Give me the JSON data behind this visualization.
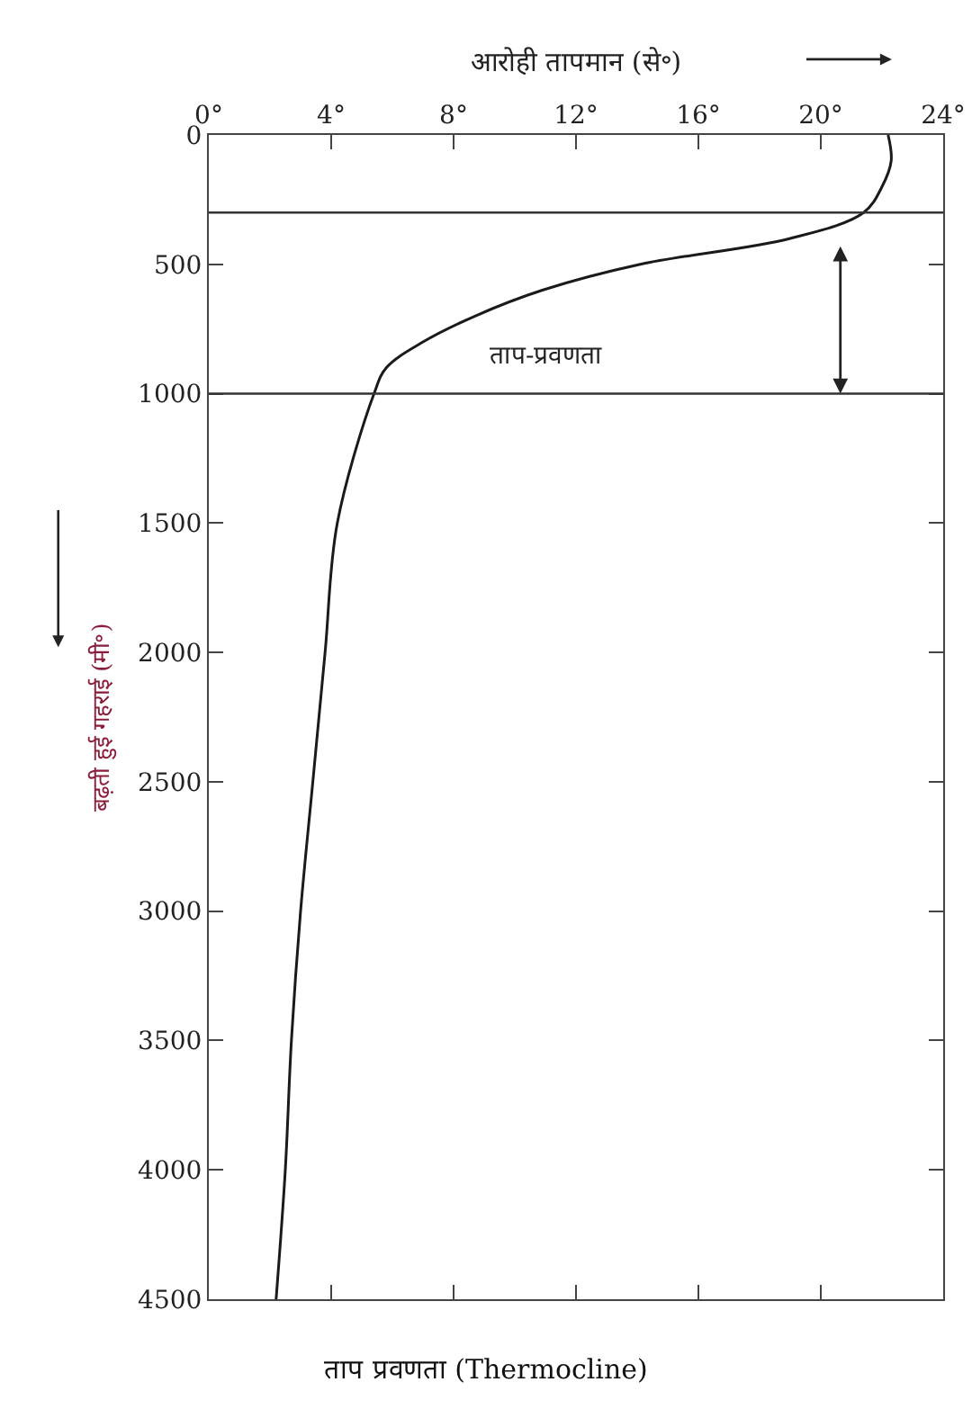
{
  "chart_data": {
    "type": "line",
    "title": "ताप प्रवणता (Thermocline)",
    "xlabel": "आरोही तापमान (से॰)",
    "ylabel": "बढ़ती हुई गहराई (मी॰)",
    "series": [
      {
        "color": "#1a1a1a",
        "x": [
          22.2,
          22.3,
          22.0,
          21.4,
          19.0,
          14.1,
          10.9,
          8.7,
          7.0,
          5.8,
          5.4,
          4.2,
          3.8,
          3.4,
          3.0,
          2.7,
          2.5,
          2.2
        ],
        "values": [
          0,
          100,
          200,
          300,
          400,
          500,
          600,
          700,
          800,
          900,
          1000,
          1500,
          2000,
          2500,
          3000,
          3500,
          4000,
          4500
        ]
      }
    ],
    "xlim": [
      0,
      24
    ],
    "xticks": [
      {
        "value": 0,
        "label": "0°"
      },
      {
        "value": 4,
        "label": "4°"
      },
      {
        "value": 8,
        "label": "8°"
      },
      {
        "value": 12,
        "label": "12°"
      },
      {
        "value": 16,
        "label": "16°"
      },
      {
        "value": 20,
        "label": "20°"
      },
      {
        "value": 24,
        "label": "24°"
      }
    ],
    "ylim": [
      4500,
      0
    ],
    "yticks": [
      0,
      500,
      1000,
      1500,
      2000,
      2500,
      3000,
      3500,
      4000,
      4500
    ],
    "ref_lines": [
      {
        "axis": "y",
        "value": 300,
        "color": "#333333"
      },
      {
        "axis": "y",
        "value": 1000,
        "color": "#333333"
      }
    ],
    "annotations": [
      "ताप-प्रवणता"
    ],
    "grid": false,
    "marker": "none",
    "line_style": "solid"
  }
}
